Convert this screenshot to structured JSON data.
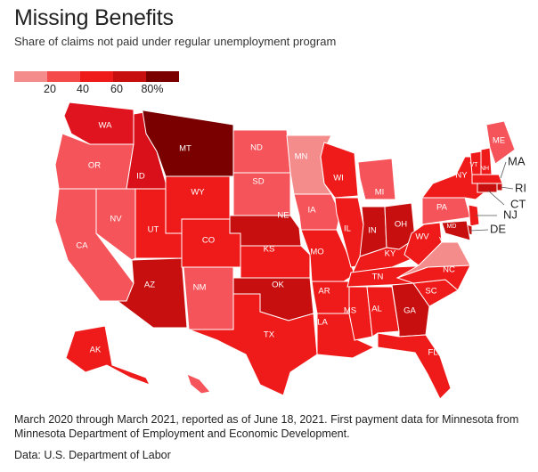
{
  "title": "Missing Benefits",
  "subtitle": "Share of claims not paid under regular unemployment program",
  "legend": {
    "colors": [
      "#f58c8c",
      "#f44a4a",
      "#ef1b1b",
      "#c70f0f",
      "#7a0000"
    ],
    "labels": [
      "20",
      "40",
      "60",
      "80%"
    ]
  },
  "states": [
    {
      "abbr": "WA",
      "color": "#e0141e"
    },
    {
      "abbr": "OR",
      "color": "#f5545a"
    },
    {
      "abbr": "CA",
      "color": "#f5545a"
    },
    {
      "abbr": "NV",
      "color": "#f5545a"
    },
    {
      "abbr": "ID",
      "color": "#d90f1a"
    },
    {
      "abbr": "MT",
      "color": "#7a0000"
    },
    {
      "abbr": "WY",
      "color": "#ef1b1b"
    },
    {
      "abbr": "UT",
      "color": "#ef1b1b"
    },
    {
      "abbr": "AZ",
      "color": "#c70f0f"
    },
    {
      "abbr": "CO",
      "color": "#ef1b1b"
    },
    {
      "abbr": "NM",
      "color": "#f5545a"
    },
    {
      "abbr": "ND",
      "color": "#f5545a"
    },
    {
      "abbr": "SD",
      "color": "#f5545a"
    },
    {
      "abbr": "NE",
      "color": "#c70f0f"
    },
    {
      "abbr": "KS",
      "color": "#ef1b1b"
    },
    {
      "abbr": "OK",
      "color": "#c70f0f"
    },
    {
      "abbr": "TX",
      "color": "#ef1b1b"
    },
    {
      "abbr": "MN",
      "color": "#f58c8c"
    },
    {
      "abbr": "IA",
      "color": "#f5545a"
    },
    {
      "abbr": "MO",
      "color": "#ef1b1b"
    },
    {
      "abbr": "AR",
      "color": "#ef1b1b"
    },
    {
      "abbr": "LA",
      "color": "#ef1b1b"
    },
    {
      "abbr": "WI",
      "color": "#ef1b1b"
    },
    {
      "abbr": "IL",
      "color": "#ef1b1b"
    },
    {
      "abbr": "MI",
      "color": "#f5545a"
    },
    {
      "abbr": "IN",
      "color": "#c70f0f"
    },
    {
      "abbr": "OH",
      "color": "#c70f0f"
    },
    {
      "abbr": "KY",
      "color": "#ef1b1b"
    },
    {
      "abbr": "TN",
      "color": "#ef1b1b"
    },
    {
      "abbr": "MS",
      "color": "#ef1b1b"
    },
    {
      "abbr": "AL",
      "color": "#ef1b1b"
    },
    {
      "abbr": "GA",
      "color": "#c70f0f"
    },
    {
      "abbr": "FL",
      "color": "#ef1b1b"
    },
    {
      "abbr": "SC",
      "color": "#ef1b1b"
    },
    {
      "abbr": "NC",
      "color": "#ef1b1b"
    },
    {
      "abbr": "VA",
      "color": "#f58c8c"
    },
    {
      "abbr": "WV",
      "color": "#ef1b1b"
    },
    {
      "abbr": "PA",
      "color": "#f5545a"
    },
    {
      "abbr": "NY",
      "color": "#ef1b1b"
    },
    {
      "abbr": "VT",
      "color": "#ef1b1b"
    },
    {
      "abbr": "NH",
      "color": "#ef1b1b"
    },
    {
      "abbr": "ME",
      "color": "#f5545a"
    },
    {
      "abbr": "MA",
      "color": "#ef1b1b"
    },
    {
      "abbr": "RI",
      "color": "#c70f0f"
    },
    {
      "abbr": "CT",
      "color": "#c70f0f"
    },
    {
      "abbr": "NJ",
      "color": "#ef1b1b"
    },
    {
      "abbr": "DE",
      "color": "#c70f0f"
    },
    {
      "abbr": "MD",
      "color": "#c70f0f"
    },
    {
      "abbr": "AK",
      "color": "#ef1b1b"
    },
    {
      "abbr": "HI",
      "color": "#f5545a"
    }
  ],
  "callouts": [
    "MA",
    "RI",
    "CT",
    "NJ",
    "DE"
  ],
  "footnote": "March 2020 through March 2021, reported as of June 18, 2021. First payment data for Minnesota from Minnesota Department of Employment and Economic Development.",
  "source": "Data: U.S. Department of Labor"
}
